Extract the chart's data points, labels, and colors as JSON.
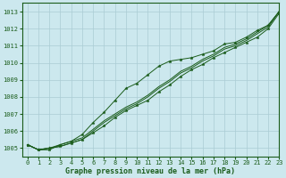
{
  "bg_color": "#cce8ee",
  "grid_color": "#aaccd4",
  "line_color": "#1a5c1a",
  "xlabel": "Graphe pression niveau de la mer (hPa)",
  "xlim": [
    -0.5,
    23
  ],
  "ylim": [
    1004.5,
    1013.5
  ],
  "yticks": [
    1005,
    1006,
    1007,
    1008,
    1009,
    1010,
    1011,
    1012,
    1013
  ],
  "xticks": [
    0,
    1,
    2,
    3,
    4,
    5,
    6,
    7,
    8,
    9,
    10,
    11,
    12,
    13,
    14,
    15,
    16,
    17,
    18,
    19,
    20,
    21,
    22,
    23
  ],
  "series": [
    [
      1005.2,
      1004.9,
      1004.9,
      1005.2,
      1005.4,
      1005.8,
      1006.5,
      1007.1,
      1007.8,
      1008.5,
      1008.8,
      1009.3,
      1009.8,
      1010.1,
      1010.2,
      1010.3,
      1010.5,
      1010.7,
      1011.1,
      1011.2,
      1011.5,
      1011.9,
      1012.2,
      1013.0
    ],
    [
      1005.2,
      1004.9,
      1005.0,
      1005.2,
      1005.4,
      1005.6,
      1006.1,
      1006.6,
      1007.0,
      1007.4,
      1007.7,
      1008.1,
      1008.6,
      1009.0,
      1009.5,
      1009.8,
      1010.2,
      1010.5,
      1010.9,
      1011.1,
      1011.4,
      1011.8,
      1012.2,
      1013.0
    ],
    [
      1005.2,
      1004.9,
      1005.0,
      1005.1,
      1005.3,
      1005.5,
      1006.0,
      1006.5,
      1006.9,
      1007.3,
      1007.6,
      1008.0,
      1008.5,
      1008.9,
      1009.4,
      1009.7,
      1010.1,
      1010.4,
      1010.8,
      1011.0,
      1011.3,
      1011.7,
      1012.1,
      1013.0
    ],
    [
      1005.2,
      1004.9,
      1005.0,
      1005.1,
      1005.3,
      1005.5,
      1005.9,
      1006.3,
      1006.8,
      1007.2,
      1007.5,
      1007.8,
      1008.3,
      1008.7,
      1009.2,
      1009.6,
      1009.9,
      1010.3,
      1010.6,
      1010.9,
      1011.2,
      1011.5,
      1012.0,
      1012.9
    ]
  ],
  "marker_series": [
    0,
    3
  ],
  "tick_fontsize": 5,
  "label_fontsize": 6,
  "lw": 0.7,
  "marker_size": 2.5
}
